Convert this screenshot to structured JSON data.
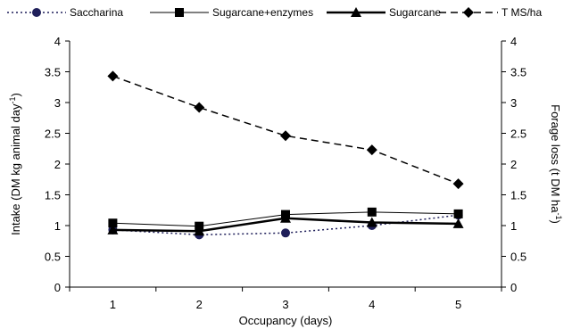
{
  "chart_data": {
    "type": "line",
    "categories": [
      "1",
      "2",
      "3",
      "4",
      "5"
    ],
    "xlabel": "Occupancy (days)",
    "ylabel_left": "Intake (DM kg animal day-1)",
    "ylabel_right": "Forage loss (t DM ha-1)",
    "ylim": [
      0,
      4
    ],
    "ylim_right": [
      0,
      4
    ],
    "yticks": [
      "0",
      "0.5",
      "1",
      "1.5",
      "2",
      "2.5",
      "3",
      "3.5",
      "4"
    ],
    "legend_position": "top",
    "series": [
      {
        "name": "Saccharina",
        "values": [
          0.93,
          0.85,
          0.88,
          1.0,
          1.17
        ],
        "marker": "circle",
        "line": "dotted",
        "color": "#1f1f5a"
      },
      {
        "name": "Sugarcane+enzymes",
        "values": [
          1.04,
          0.99,
          1.18,
          1.22,
          1.19
        ],
        "marker": "square",
        "line": "thin",
        "color": "#000000"
      },
      {
        "name": "Sugarcane",
        "values": [
          0.93,
          0.91,
          1.12,
          1.05,
          1.03
        ],
        "marker": "triangle",
        "line": "thick",
        "color": "#000000"
      },
      {
        "name": "T MS/ha",
        "values": [
          3.43,
          2.92,
          2.46,
          2.23,
          1.68
        ],
        "marker": "diamond",
        "line": "dashed",
        "color": "#000000"
      }
    ]
  }
}
